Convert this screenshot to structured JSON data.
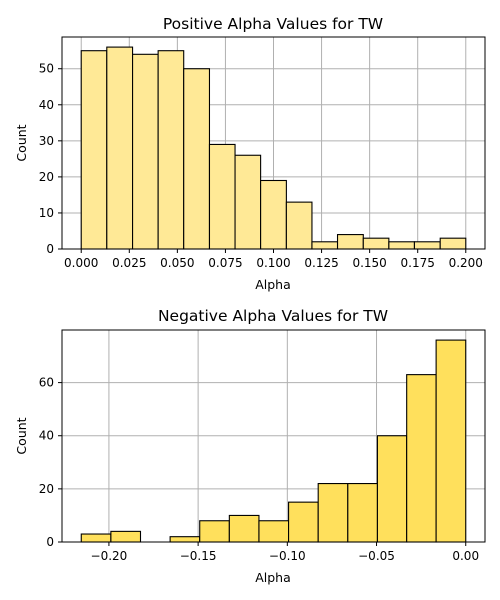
{
  "chart_data": [
    {
      "type": "bar",
      "title": "Positive Alpha Values for TW",
      "xlabel": "Alpha",
      "ylabel": "Count",
      "bar_color": "#ffe996",
      "edge_color": "#000000",
      "grid": true,
      "xlim": [
        -0.01,
        0.21
      ],
      "ylim": [
        0,
        58.8
      ],
      "xticks": [
        0.0,
        0.025,
        0.05,
        0.075,
        0.1,
        0.125,
        0.15,
        0.175,
        0.2
      ],
      "xtick_labels": [
        "0.000",
        "0.025",
        "0.050",
        "0.075",
        "0.100",
        "0.125",
        "0.150",
        "0.175",
        "0.200"
      ],
      "yticks": [
        0,
        10,
        20,
        30,
        40,
        50
      ],
      "ytick_labels": [
        "0",
        "10",
        "20",
        "30",
        "40",
        "50"
      ],
      "bin_edges": [
        0.0,
        0.0133,
        0.0267,
        0.04,
        0.0533,
        0.0667,
        0.08,
        0.0933,
        0.1067,
        0.12,
        0.1333,
        0.1467,
        0.16,
        0.1733,
        0.1867,
        0.2
      ],
      "values": [
        55,
        56,
        54,
        55,
        50,
        29,
        26,
        19,
        13,
        2,
        4,
        3,
        2,
        2,
        3
      ]
    },
    {
      "type": "bar",
      "title": "Negative Alpha Values for TW",
      "xlabel": "Alpha",
      "ylabel": "Count",
      "bar_color": "#ffe05c",
      "edge_color": "#000000",
      "grid": true,
      "xlim": [
        -0.2263,
        0.0108
      ],
      "ylim": [
        0,
        79.8
      ],
      "xticks": [
        -0.2,
        -0.15,
        -0.1,
        -0.05,
        0.0
      ],
      "xtick_labels": [
        "−0.20",
        "−0.15",
        "−0.10",
        "−0.05",
        "0.00"
      ],
      "yticks": [
        0,
        20,
        40,
        60
      ],
      "ytick_labels": [
        "0",
        "20",
        "40",
        "60"
      ],
      "bin_edges": [
        -0.2155,
        -0.1989,
        -0.1823,
        -0.1657,
        -0.1491,
        -0.1325,
        -0.1159,
        -0.0993,
        -0.0827,
        -0.0661,
        -0.0495,
        -0.0331,
        -0.0166,
        0.0
      ],
      "values": [
        3,
        4,
        0,
        2,
        8,
        10,
        8,
        15,
        22,
        22,
        40,
        63,
        76
      ]
    }
  ]
}
